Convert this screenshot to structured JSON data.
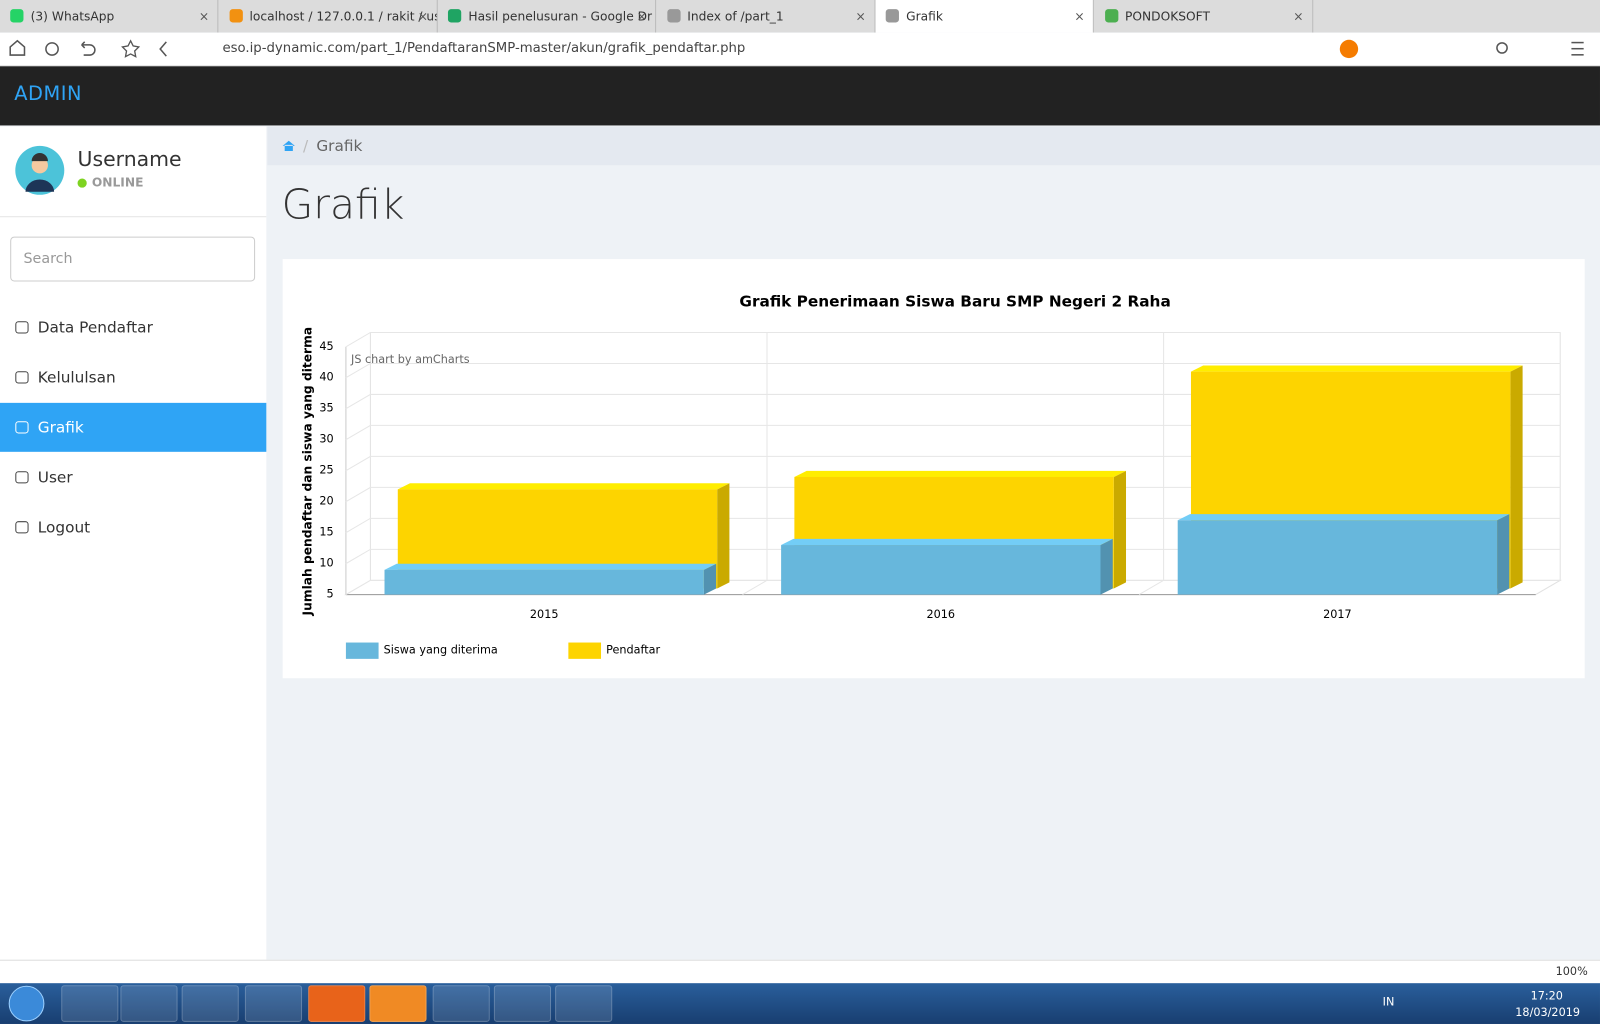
{
  "browser": {
    "tabs": [
      "(3) WhatsApp",
      "localhost / 127.0.0.1 / rakit / us",
      "Hasil penelusuran - Google Dr",
      "Index of /part_1",
      "Grafik",
      "PONDOKSOFT"
    ],
    "active_tab": 4,
    "url": "eso.ip-dynamic.com/part_1/PendaftaranSMP-master/akun/grafik_pendaftar.php",
    "zoom": "100%"
  },
  "navbar": {
    "brand": "ADMIN"
  },
  "sidebar": {
    "user": "Username",
    "status": "ONLINE",
    "search_placeholder": "Search",
    "menu": [
      "Data Pendaftar",
      "Kelululsan",
      "Grafik",
      "User",
      "Logout"
    ],
    "active": 2
  },
  "breadcrumb": "Grafik",
  "page_title": "Grafik",
  "chart_data": {
    "type": "bar3d",
    "title": "Grafik Penerimaan Siswa Baru SMP Negeri 2 Raha",
    "y_label": "Jumlah pendaftar dan siswa yang diterma",
    "credit": "JS chart by amCharts",
    "categories": [
      "2015",
      "2016",
      "2017"
    ],
    "series": [
      {
        "name": "Siswa yang diterima",
        "color": "#67b7dc",
        "values": [
          9,
          13,
          17
        ]
      },
      {
        "name": "Pendaftar",
        "color": "#fdd400",
        "values": [
          21,
          23,
          40
        ]
      }
    ],
    "ylim": [
      5,
      45
    ],
    "yticks": [
      5,
      10,
      15,
      20,
      25,
      30,
      35,
      40,
      45
    ],
    "grid": true
  },
  "taskbar": {
    "lang": "IN",
    "time": "17:20",
    "date": "18/03/2019"
  }
}
